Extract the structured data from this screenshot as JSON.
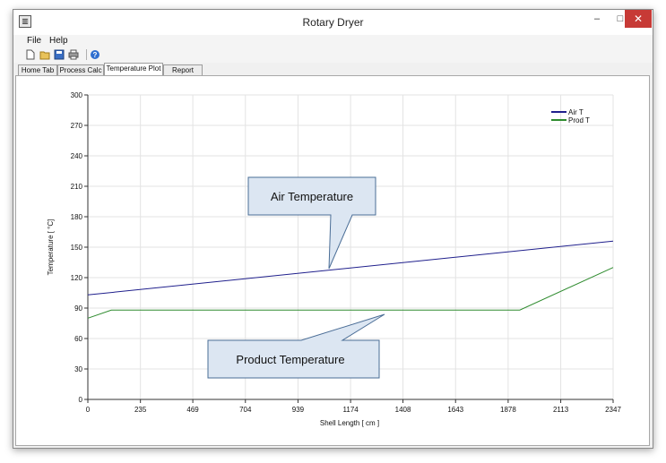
{
  "window": {
    "title": "Rotary Dryer",
    "app_icon": "chart-app-icon",
    "controls": {
      "minimize": "–",
      "maximize": "□",
      "close": "✕"
    }
  },
  "menu": {
    "file": "File",
    "help": "Help"
  },
  "toolbar": {
    "icons": [
      "new-file-icon",
      "open-folder-icon",
      "save-icon",
      "print-icon",
      "help-icon"
    ]
  },
  "tabs": [
    {
      "label": "Home Tab",
      "active": false
    },
    {
      "label": "Process Calc",
      "active": false
    },
    {
      "label": "Temperature Plot",
      "active": true
    },
    {
      "label": "Report",
      "active": false
    }
  ],
  "chart_data": {
    "type": "line",
    "xlabel": "Shell Length [ cm ]",
    "ylabel": "Temperature [ °C]",
    "xlim": [
      0,
      2347
    ],
    "ylim": [
      0,
      300
    ],
    "x_ticks": [
      0,
      235,
      469,
      704,
      939,
      1174,
      1408,
      1643,
      1878,
      2113,
      2347
    ],
    "y_ticks": [
      0,
      30,
      60,
      90,
      120,
      150,
      180,
      210,
      240,
      270,
      300
    ],
    "grid": true,
    "legend_position": "top-right",
    "series": [
      {
        "name": "Air T",
        "color": "#1f1f8c",
        "x": [
          0,
          2347
        ],
        "y": [
          103,
          156
        ]
      },
      {
        "name": "Prod T",
        "color": "#2e8b2e",
        "x": [
          0,
          105,
          1930,
          2347
        ],
        "y": [
          80,
          88,
          88,
          130
        ]
      }
    ],
    "annotations": [
      {
        "label": "Air Temperature",
        "color": "#dce6f2"
      },
      {
        "label": "Product Temperature",
        "color": "#dce6f2"
      }
    ]
  }
}
